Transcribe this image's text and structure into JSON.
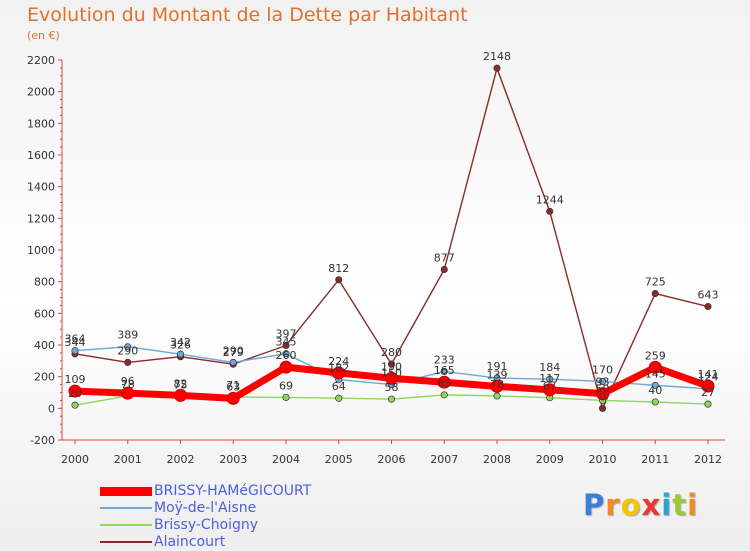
{
  "title": "Evolution du Montant de la Dette par Habitant",
  "subtitle": "(en €)",
  "chart_data": {
    "type": "line",
    "categories": [
      "2000",
      "2001",
      "2002",
      "2003",
      "2004",
      "2005",
      "2006",
      "2007",
      "2008",
      "2009",
      "2010",
      "2011",
      "2012"
    ],
    "ylim": [
      -200,
      2200
    ],
    "yticks": [
      -200,
      0,
      200,
      400,
      600,
      800,
      1000,
      1200,
      1400,
      1600,
      1800,
      2000,
      2200
    ],
    "grid": false,
    "legend_position": "bottom-left",
    "series": [
      {
        "name": "BRISSY-HAMéGICOURT",
        "color": "#ff0000",
        "values": [
          109,
          96,
          82,
          63,
          260,
          224,
          190,
          165,
          139,
          117,
          93,
          259,
          141
        ],
        "labels": [
          "109",
          "96",
          "82",
          "63",
          "260",
          "224",
          "190",
          "165",
          "139",
          "117",
          "93",
          "259",
          "141"
        ]
      },
      {
        "name": "Moÿ-de-l'Aisne",
        "color": "#6ea8d6",
        "values": [
          364,
          389,
          342,
          290,
          345,
          182,
          150,
          233,
          191,
          184,
          170,
          145,
          124
        ],
        "labels": [
          "364",
          "389",
          "342",
          "290",
          "345",
          "182",
          "150",
          "233",
          "191",
          "184",
          "170",
          "145",
          "124"
        ]
      },
      {
        "name": "Brissy-Choigny",
        "color": "#8fd65c",
        "values": [
          20,
          78,
          75,
          71,
          69,
          64,
          58,
          85,
          78,
          67,
          50,
          40,
          27
        ],
        "labels": [
          "20",
          "78",
          "75",
          "71",
          "69",
          "64",
          "58",
          "85",
          "78",
          "67",
          "50",
          "40",
          "27"
        ]
      },
      {
        "name": "Alaincourt",
        "color": "#8b2b2b",
        "values": [
          344,
          290,
          326,
          279,
          397,
          812,
          280,
          877,
          2148,
          1244,
          0,
          725,
          643
        ],
        "labels": [
          "344",
          "290",
          "326",
          "279",
          "397",
          "812",
          "280",
          "877",
          "2148",
          "1244",
          "0",
          "725",
          "643"
        ]
      }
    ]
  },
  "logo": {
    "letters": [
      "P",
      "r",
      "o",
      "x",
      "i",
      "t",
      "i"
    ],
    "colors": [
      "#3a7fd5",
      "#f08a24",
      "#f5c400",
      "#e83a2f",
      "#2aa3d8",
      "#9ac93a",
      "#f08a24"
    ]
  }
}
